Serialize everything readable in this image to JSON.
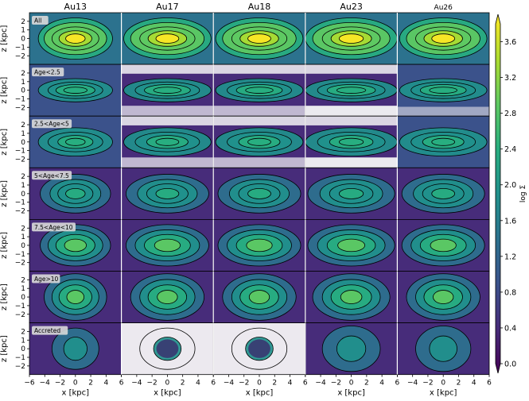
{
  "chart_data": {
    "type": "heatmap",
    "description_grid": "7 rows x 5 columns of face-on/edge-on surface density maps with contour lines",
    "columns": [
      "Au13",
      "Au17",
      "Au18",
      "Au23",
      "Au26"
    ],
    "rows": [
      {
        "label": "All"
      },
      {
        "label": "Age<2.5"
      },
      {
        "label": "2.5<Age<5"
      },
      {
        "label": "5<Age<7.5"
      },
      {
        "label": "7.5<Age<10"
      },
      {
        "label": "Age>10"
      },
      {
        "label": "Accreted"
      }
    ],
    "xlabel": "x [kpc]",
    "ylabel": "z [kpc]",
    "xlim": [
      -6,
      6
    ],
    "ylim": [
      -3,
      3
    ],
    "xticks": [
      "−6",
      "−4",
      "−2",
      "0",
      "2",
      "4",
      "6"
    ],
    "xtick_values": [
      -6,
      -4,
      -2,
      0,
      2,
      4,
      6
    ],
    "yticks": [
      "2",
      "1",
      "0",
      "−1",
      "−2"
    ],
    "ytick_values": [
      2,
      1,
      0,
      -1,
      -2
    ],
    "colorbar": {
      "label": "log Σ",
      "min": 0.0,
      "max": 3.8,
      "ticks": [
        "3.6",
        "3.2",
        "2.8",
        "2.4",
        "2.0",
        "1.6",
        "1.2",
        "0.8",
        "0.4",
        "0.0"
      ],
      "tick_values": [
        3.6,
        3.2,
        2.8,
        2.4,
        2.0,
        1.6,
        1.2,
        0.8,
        0.4,
        0.0
      ],
      "colormap": "viridis"
    }
  },
  "colors": {
    "viridis": [
      "#440154",
      "#472c7a",
      "#3b528b",
      "#2c728e",
      "#21918c",
      "#28ae80",
      "#5ec962",
      "#addc30",
      "#fde725"
    ],
    "label_box": "#d9d9d9"
  }
}
